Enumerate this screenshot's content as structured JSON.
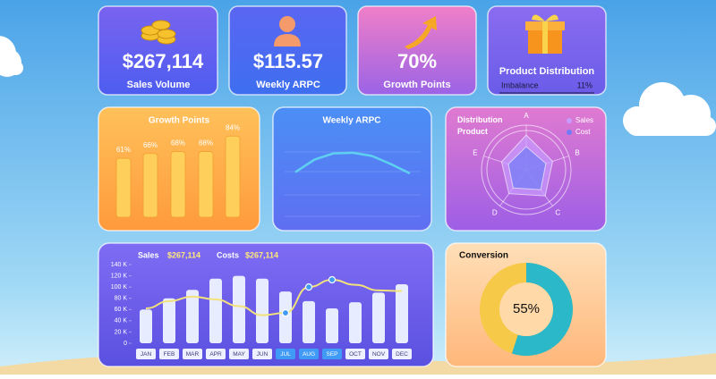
{
  "cards": [
    {
      "value": "$267,114",
      "label": "Sales Volume"
    },
    {
      "value": "$115.57",
      "label": "Weekly ARPC"
    },
    {
      "value": "70%",
      "label": "Growth Points"
    },
    {
      "title": "Product Distribution",
      "label": "Imbalance",
      "value": "11%"
    }
  ],
  "chart_data": [
    {
      "type": "bar",
      "title": "Growth Points",
      "categories": [
        null,
        null,
        null,
        null,
        null
      ],
      "values": [
        61,
        66,
        68,
        68,
        84
      ],
      "value_labels": [
        "61%",
        "66%",
        "68%",
        "68%",
        "84%"
      ],
      "color": "#ffcf5c"
    },
    {
      "type": "line",
      "title": "Weekly ARPC",
      "categories": [
        null,
        null,
        null,
        null,
        null,
        null,
        null
      ],
      "values": [
        32,
        52,
        62,
        63,
        58,
        45,
        30
      ],
      "color": "#5fd0f0"
    },
    {
      "type": "radar",
      "title": "Distribution Product",
      "categories": [
        "A",
        "B",
        "C",
        "D",
        "E"
      ],
      "rlim": [
        0,
        100
      ],
      "series": [
        {
          "name": "Sales",
          "color": "#c79bff",
          "values": [
            78,
            62,
            72,
            66,
            58
          ]
        },
        {
          "name": "Cost",
          "color": "#6f7cf5",
          "values": [
            52,
            46,
            55,
            50,
            42
          ]
        }
      ]
    },
    {
      "type": "combo",
      "categories": [
        "JAN",
        "FEB",
        "MAR",
        "APR",
        "MAY",
        "JUN",
        "JUL",
        "AUG",
        "SEP",
        "OCT",
        "NOV",
        "DEC"
      ],
      "ylim": [
        0,
        140000
      ],
      "yticks": [
        0,
        {
          "value": 20000,
          "label": "20 K"
        },
        {
          "value": 40000,
          "label": "40 K"
        },
        {
          "value": 60000,
          "label": "60 K"
        },
        {
          "value": 80000,
          "label": "80 K"
        },
        {
          "value": 100000,
          "label": "100 K"
        },
        {
          "value": 120000,
          "label": "120 K"
        },
        {
          "value": 140000,
          "label": "140 K"
        }
      ],
      "series": [
        {
          "name": "Sales",
          "total": "$267,114",
          "color": "#e8ecff",
          "values": [
            60000,
            80000,
            95000,
            115000,
            120000,
            115000,
            92000,
            75000,
            62000,
            73000,
            90000,
            105000
          ]
        },
        {
          "name": "Costs",
          "total": "$267,114",
          "color": "#f3e27a",
          "values": [
            62000,
            75000,
            83000,
            78000,
            66000,
            50000,
            54000,
            100000,
            113000,
            104000,
            94000,
            93000
          ]
        }
      ]
    },
    {
      "type": "donut",
      "title": "Conversion",
      "values": [
        55
      ],
      "value_labels": [
        "55%"
      ],
      "color": "#2bb8c9"
    }
  ]
}
